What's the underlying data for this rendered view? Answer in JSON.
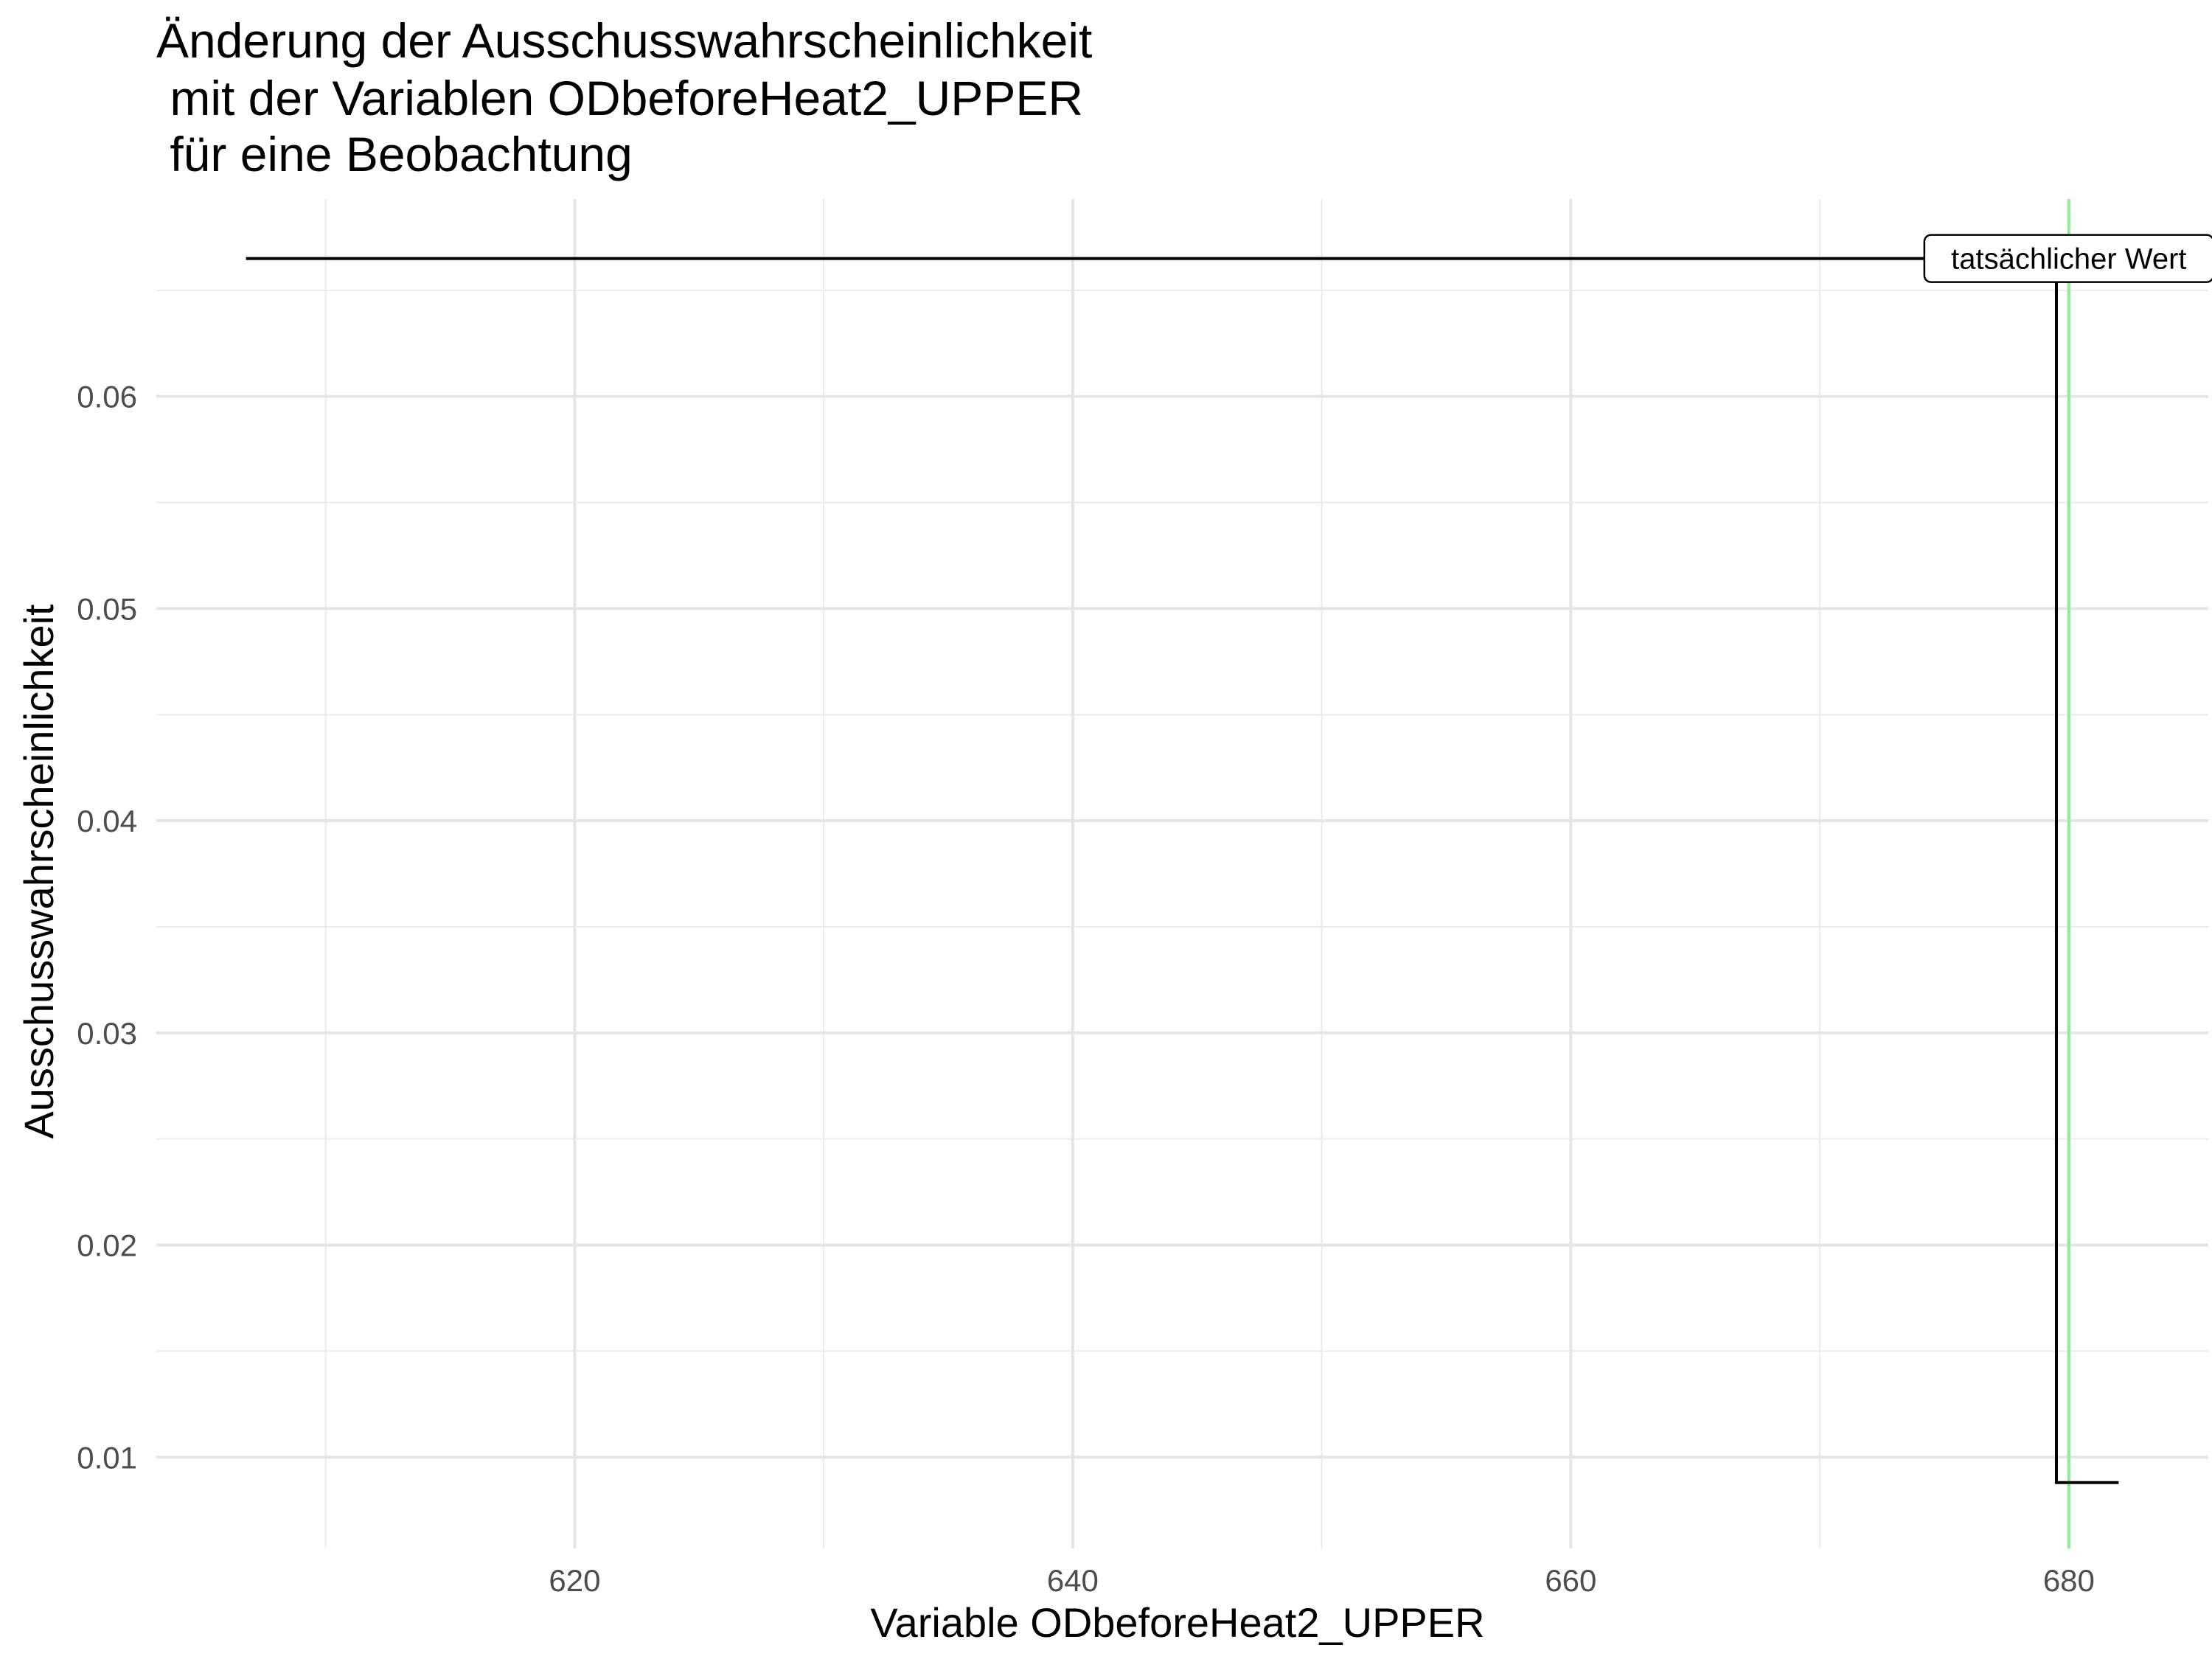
{
  "chart_data": {
    "type": "line",
    "title_lines": [
      "Änderung der Ausschusswahrscheinlichkeit",
      " mit der Variablen ODbeforeHeat2_UPPER",
      " für eine Beobachtung"
    ],
    "xlabel": "Variable ODbeforeHeat2_UPPER",
    "ylabel": "Ausschusswahrscheinlichkeit",
    "xlim": [
      603.2,
      685.6
    ],
    "ylim": [
      0.0057,
      0.0693
    ],
    "x_ticks": [
      620,
      640,
      660,
      680
    ],
    "x_tick_labels": [
      "620",
      "640",
      "660",
      "680"
    ],
    "y_ticks": [
      0.01,
      0.02,
      0.03,
      0.04,
      0.05,
      0.06
    ],
    "y_tick_labels": [
      "0.01",
      "0.02",
      "0.03",
      "0.04",
      "0.05",
      "0.06"
    ],
    "grid": true,
    "legend": "none",
    "series": [
      {
        "step": true,
        "color": "#000000",
        "x": [
          606.8,
          679.5,
          679.5,
          682.0
        ],
        "y": [
          0.0665,
          0.0665,
          0.0088,
          0.0088
        ]
      }
    ],
    "vline": {
      "x": 680,
      "color": "#90ee90"
    },
    "annotation": {
      "text": "tatsächlicher Wert",
      "x": 680,
      "y": 0.0665
    }
  }
}
